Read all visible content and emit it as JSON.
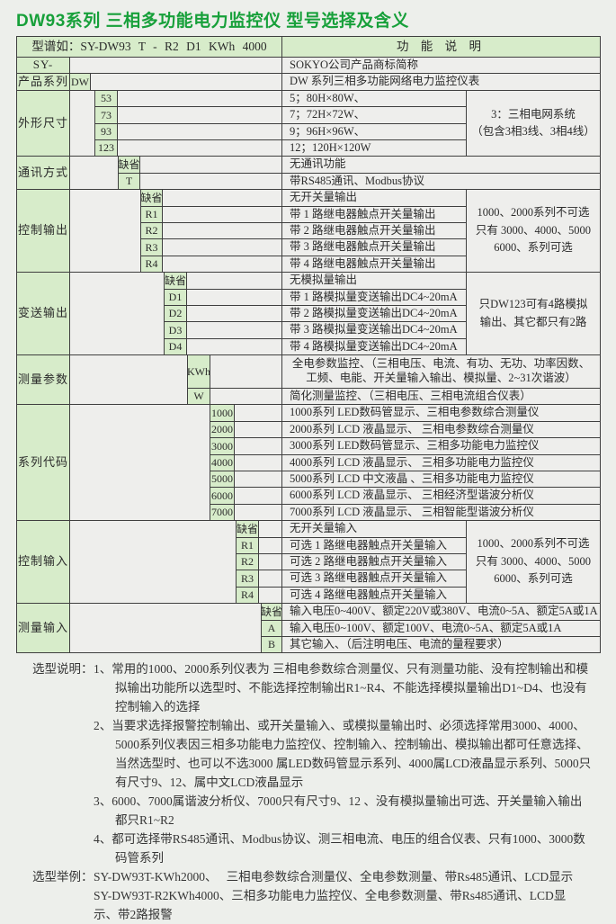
{
  "page": {
    "title": "DW93系列 三相多功能电力监控仪 型号选择及含义"
  },
  "table": {
    "header": {
      "model": "型谱如：SY-DW93 T - R2 D1 KWh 4000",
      "function": "功 能 说 明"
    },
    "groups": [
      {
        "label": "SY-",
        "code_col": -1,
        "full": true,
        "rows": [
          {
            "code": "",
            "desc": "SOKYO公司产品商标简称"
          }
        ]
      },
      {
        "label": "产品系列",
        "code_col": 0,
        "full": true,
        "rows": [
          {
            "code": "DW",
            "desc": "DW 系列三相多功能网络电力监控仪表"
          }
        ]
      },
      {
        "label": "外形尺寸",
        "code_col": 1,
        "rows": [
          {
            "code": "53",
            "desc": "5；80H×80W、"
          },
          {
            "code": "73",
            "desc": "7；72H×72W、"
          },
          {
            "code": "93",
            "desc": "9；96H×96W、"
          },
          {
            "code": "123",
            "desc": "12；120H×120W"
          }
        ],
        "note": "3：三相电网系统\n（包含3相3线、3相4线）"
      },
      {
        "label": "通讯方式",
        "code_col": 2,
        "full": true,
        "rows": [
          {
            "code": "缺省",
            "desc": "无通讯功能"
          },
          {
            "code": "T",
            "desc": "带RS485通讯、Modbus协议"
          }
        ]
      },
      {
        "label": "控制输出",
        "code_col": 3,
        "rows": [
          {
            "code": "缺省",
            "desc": "无开关量输出"
          },
          {
            "code": "R1",
            "desc": "带 1 路继电器触点开关量输出"
          },
          {
            "code": "R2",
            "desc": "带 2 路继电器触点开关量输出"
          },
          {
            "code": "R3",
            "desc": "带 3 路继电器触点开关量输出"
          },
          {
            "code": "R4",
            "desc": "带 4 路继电器触点开关量输出"
          }
        ],
        "note": "1000、2000系列不可选\n只有 3000、4000、5000\n6000、系列可选"
      },
      {
        "label": "变送输出",
        "code_col": 4,
        "rows": [
          {
            "code": "缺省",
            "desc": "无模拟量输出"
          },
          {
            "code": "D1",
            "desc": "带 1 路模拟量变送输出DC4~20mA"
          },
          {
            "code": "D2",
            "desc": "带 2 路模拟量变送输出DC4~20mA"
          },
          {
            "code": "D3",
            "desc": "带 3 路模拟量变送输出DC4~20mA"
          },
          {
            "code": "D4",
            "desc": "带 4 路模拟量变送输出DC4~20mA"
          }
        ],
        "note": "只DW123可有4路模拟\n输出、其它都只有2路"
      },
      {
        "label": "测量参数",
        "code_col": 5,
        "full": true,
        "rows": [
          {
            "code": "KWh",
            "units": 2,
            "center": true,
            "desc": "全电参数监控、（三相电压、电流、有功、无功、功率因数、\n工频、电能、开关量输入输出、模拟量、2~31次谐波）"
          },
          {
            "code": "W",
            "desc": "简化测量监控、（三相电压、三相电流组合仪表）"
          }
        ]
      },
      {
        "label": "系列代码",
        "code_col": 6,
        "full": true,
        "rows": [
          {
            "code": "1000",
            "desc": "1000系列 LED数码管显示、三相电参数综合测量仪"
          },
          {
            "code": "2000",
            "desc": "2000系列 LCD  液晶显示、 三相电参数综合测量仪"
          },
          {
            "code": "3000",
            "desc": "3000系列 LED数码管显示、三相多功能电力监控仪"
          },
          {
            "code": "4000",
            "desc": "4000系列 LCD  液晶显示、 三相多功能电力监控仪"
          },
          {
            "code": "5000",
            "desc": "5000系列 LCD  中文液晶 、三相多功能电力监控仪"
          },
          {
            "code": "6000",
            "desc": "6000系列 LCD  液晶显示、 三相经济型谐波分析仪"
          },
          {
            "code": "7000",
            "desc": "7000系列 LCD  液晶显示、 三相智能型谐波分析仪"
          }
        ]
      },
      {
        "label": "控制输入",
        "code_col": 7,
        "rows": [
          {
            "code": "缺省",
            "desc": "无开关量输入"
          },
          {
            "code": "R1",
            "desc": "可选 1 路继电器触点开关量输入"
          },
          {
            "code": "R2",
            "desc": "可选 2 路继电器触点开关量输入"
          },
          {
            "code": "R3",
            "desc": "可选 3 路继电器触点开关量输入"
          },
          {
            "code": "R4",
            "desc": "可选 4 路继电器触点开关量输入"
          }
        ],
        "note": "1000、2000系列不可选\n只有 3000、4000、5000\n6000、系列可选"
      },
      {
        "label": "测量输入",
        "code_col": 8,
        "full": true,
        "rows": [
          {
            "code": "缺省",
            "desc": "输入电压0~400V、额定220V或380V、电流0~5A、额定5A或1A"
          },
          {
            "code": "A",
            "desc": "输入电压0~100V、额定100V、电流0~5A、额定5A或1A"
          },
          {
            "code": "B",
            "desc": "其它输入、（后注明电压、电流的量程要求）"
          }
        ]
      }
    ]
  },
  "notes": {
    "label": "选型说明：",
    "items": [
      {
        "num": "1、",
        "text": "常用的1000、2000系列仪表为 三相电参数综合测量仪、只有测量功能、没有控制输出和模拟输出功能所以选型时、不能选择控制输出R1~R4、不能选择模拟量输出D1~D4、也没有控制输入的选择"
      },
      {
        "num": "2、",
        "text": "当要求选择报警控制输出、或开关量输入、或模拟量输出时、必须选择常用3000、4000、5000系列仪表因三相多功能电力监控仪、控制输入、控制输出、模拟输出都可任意选择、当然选型时、也可以不选3000 属LED数码管显示系列、4000属LCD液晶显示系列、5000只有尺寸9、12、属中文LCD液晶显示"
      },
      {
        "num": "3、",
        "text": "6000、7000属谐波分析仪、7000只有尺寸9、12 、没有模拟量输出可选、开关量输入输出都只R1~R2"
      },
      {
        "num": "4、",
        "text": "都可选择带RS485通讯、Modbus协议、测三相电流、电压的组合仪表、只有1000、3000数码管系列"
      }
    ]
  },
  "examples": {
    "label": "选型举例：",
    "lines": [
      "SY-DW93T-KWh2000、　 三相电参数综合测量仪、全电参数测量、带Rs485通讯、LCD显示",
      "SY-DW93T-R2KWh4000、三相多功能电力监控仪、全电参数测量、带Rs485通讯、LCD显示、带2路报警"
    ]
  }
}
